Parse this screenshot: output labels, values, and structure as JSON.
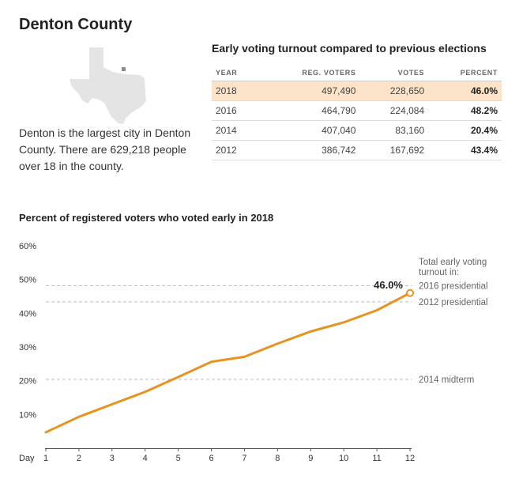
{
  "county_title": "Denton County",
  "description": "Denton is the largest city in Denton County. There are 629,218 people over 18 in the county.",
  "table": {
    "title": "Early voting turnout compared to previous elections",
    "headers": [
      "YEAR",
      "REG. VOTERS",
      "VOTES",
      "PERCENT"
    ],
    "rows": [
      {
        "year": "2018",
        "reg_voters": "497,490",
        "votes": "228,650",
        "percent": "46.0%",
        "highlight": true
      },
      {
        "year": "2016",
        "reg_voters": "464,790",
        "votes": "224,084",
        "percent": "48.2%",
        "highlight": false
      },
      {
        "year": "2014",
        "reg_voters": "407,040",
        "votes": "83,160",
        "percent": "20.4%",
        "highlight": false
      },
      {
        "year": "2012",
        "reg_voters": "386,742",
        "votes": "167,692",
        "percent": "43.4%",
        "highlight": false
      }
    ]
  },
  "chart_data": {
    "type": "line",
    "title": "Percent of registered voters who voted early in 2018",
    "xlabel": "Day",
    "x": [
      1,
      2,
      3,
      4,
      5,
      6,
      7,
      8,
      9,
      10,
      11,
      12
    ],
    "values": [
      4.7,
      9.3,
      13.0,
      16.7,
      21.1,
      25.6,
      27.1,
      31.0,
      34.6,
      37.3,
      40.9,
      46.0
    ],
    "ylim": [
      0,
      60
    ],
    "yticks": [
      10,
      20,
      30,
      40,
      50,
      60
    ],
    "ytick_labels": [
      "10%",
      "20%",
      "30%",
      "40%",
      "50%",
      "60%"
    ],
    "end_label": "46.0%",
    "reference_heading": "Total early voting turnout in:",
    "reference_lines": [
      {
        "label": "2016 presidential",
        "value": 48.2
      },
      {
        "label": "2012 presidential",
        "value": 43.4
      },
      {
        "label": "2014 midterm",
        "value": 20.4
      }
    ],
    "line_color": "#e8931f",
    "reference_color": "#bbbbbb"
  }
}
